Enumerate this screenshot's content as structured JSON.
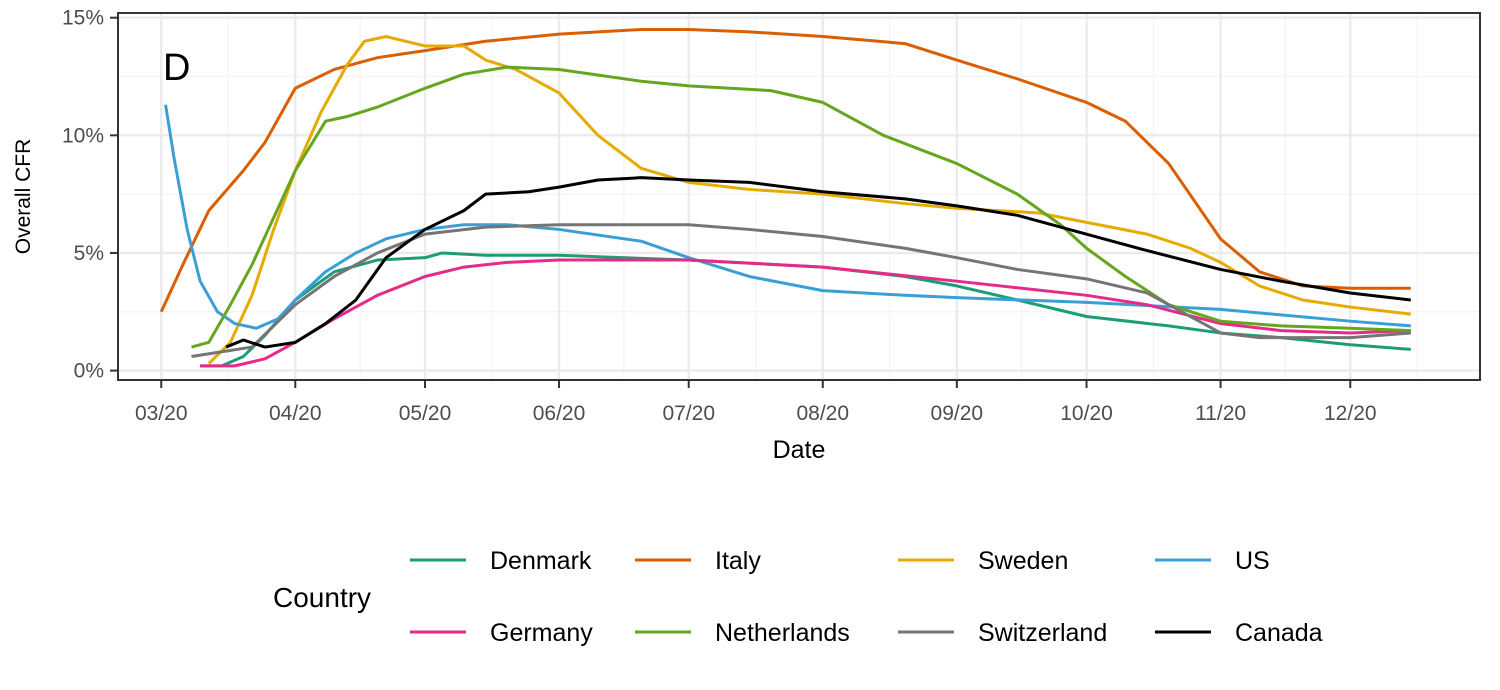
{
  "chart_data": {
    "type": "line",
    "panel_label": "D",
    "xlabel": "Date",
    "ylabel": "Overall CFR",
    "x_axis": {
      "type": "date",
      "range": [
        "2020-02-20",
        "2020-12-31"
      ],
      "ticks": [
        {
          "date": "2020-03-01",
          "label": "03/20"
        },
        {
          "date": "2020-04-01",
          "label": "04/20"
        },
        {
          "date": "2020-05-01",
          "label": "05/20"
        },
        {
          "date": "2020-06-01",
          "label": "06/20"
        },
        {
          "date": "2020-07-01",
          "label": "07/20"
        },
        {
          "date": "2020-08-01",
          "label": "08/20"
        },
        {
          "date": "2020-09-01",
          "label": "09/20"
        },
        {
          "date": "2020-10-01",
          "label": "10/20"
        },
        {
          "date": "2020-11-01",
          "label": "11/20"
        },
        {
          "date": "2020-12-01",
          "label": "12/20"
        }
      ]
    },
    "y_axis": {
      "range": [
        -0.4,
        15.2
      ],
      "ticks": [
        {
          "value": 0,
          "label": "0%"
        },
        {
          "value": 5,
          "label": "5%"
        },
        {
          "value": 10,
          "label": "10%"
        },
        {
          "value": 15,
          "label": "15%"
        }
      ]
    },
    "grid": true,
    "legend": {
      "title": "Country",
      "position": "bottom"
    },
    "series": [
      {
        "name": "Denmark",
        "color": "#1b9e77",
        "points": [
          [
            "2020-03-10",
            0.2
          ],
          [
            "2020-03-15",
            0.2
          ],
          [
            "2020-03-20",
            0.6
          ],
          [
            "2020-03-25",
            1.5
          ],
          [
            "2020-04-01",
            3.0
          ],
          [
            "2020-04-10",
            4.2
          ],
          [
            "2020-04-20",
            4.7
          ],
          [
            "2020-05-01",
            4.8
          ],
          [
            "2020-05-05",
            5.0
          ],
          [
            "2020-05-15",
            4.9
          ],
          [
            "2020-06-01",
            4.9
          ],
          [
            "2020-07-01",
            4.7
          ],
          [
            "2020-08-01",
            4.4
          ],
          [
            "2020-08-20",
            4.0
          ],
          [
            "2020-09-01",
            3.6
          ],
          [
            "2020-09-15",
            3.0
          ],
          [
            "2020-10-01",
            2.3
          ],
          [
            "2020-10-20",
            1.9
          ],
          [
            "2020-11-01",
            1.6
          ],
          [
            "2020-11-15",
            1.4
          ],
          [
            "2020-12-01",
            1.1
          ],
          [
            "2020-12-15",
            0.9
          ]
        ]
      },
      {
        "name": "Italy",
        "color": "#d95f02",
        "points": [
          [
            "2020-03-01",
            2.5
          ],
          [
            "2020-03-06",
            4.5
          ],
          [
            "2020-03-12",
            6.8
          ],
          [
            "2020-03-20",
            8.5
          ],
          [
            "2020-03-25",
            9.7
          ],
          [
            "2020-04-01",
            12.0
          ],
          [
            "2020-04-10",
            12.8
          ],
          [
            "2020-04-20",
            13.3
          ],
          [
            "2020-05-01",
            13.6
          ],
          [
            "2020-05-15",
            14.0
          ],
          [
            "2020-06-01",
            14.3
          ],
          [
            "2020-06-20",
            14.5
          ],
          [
            "2020-07-01",
            14.5
          ],
          [
            "2020-07-15",
            14.4
          ],
          [
            "2020-08-01",
            14.2
          ],
          [
            "2020-08-20",
            13.9
          ],
          [
            "2020-09-01",
            13.2
          ],
          [
            "2020-09-15",
            12.4
          ],
          [
            "2020-10-01",
            11.4
          ],
          [
            "2020-10-10",
            10.6
          ],
          [
            "2020-10-20",
            8.8
          ],
          [
            "2020-11-01",
            5.6
          ],
          [
            "2020-11-10",
            4.2
          ],
          [
            "2020-11-20",
            3.6
          ],
          [
            "2020-12-01",
            3.5
          ],
          [
            "2020-12-15",
            3.5
          ]
        ]
      },
      {
        "name": "Sweden",
        "color": "#e6ab02",
        "points": [
          [
            "2020-03-12",
            0.3
          ],
          [
            "2020-03-17",
            1.2
          ],
          [
            "2020-03-22",
            3.2
          ],
          [
            "2020-03-27",
            6.0
          ],
          [
            "2020-04-01",
            8.5
          ],
          [
            "2020-04-07",
            11.0
          ],
          [
            "2020-04-13",
            13.0
          ],
          [
            "2020-04-17",
            14.0
          ],
          [
            "2020-04-22",
            14.2
          ],
          [
            "2020-05-01",
            13.8
          ],
          [
            "2020-05-10",
            13.8
          ],
          [
            "2020-05-15",
            13.2
          ],
          [
            "2020-05-22",
            12.8
          ],
          [
            "2020-06-01",
            11.8
          ],
          [
            "2020-06-10",
            10.0
          ],
          [
            "2020-06-20",
            8.6
          ],
          [
            "2020-07-01",
            8.0
          ],
          [
            "2020-07-15",
            7.7
          ],
          [
            "2020-08-01",
            7.5
          ],
          [
            "2020-08-20",
            7.1
          ],
          [
            "2020-09-01",
            6.9
          ],
          [
            "2020-09-20",
            6.7
          ],
          [
            "2020-10-01",
            6.3
          ],
          [
            "2020-10-15",
            5.8
          ],
          [
            "2020-10-25",
            5.2
          ],
          [
            "2020-11-01",
            4.6
          ],
          [
            "2020-11-10",
            3.6
          ],
          [
            "2020-11-20",
            3.0
          ],
          [
            "2020-12-01",
            2.7
          ],
          [
            "2020-12-15",
            2.4
          ]
        ]
      },
      {
        "name": "US",
        "color": "#3a9fd6",
        "points": [
          [
            "2020-03-02",
            11.3
          ],
          [
            "2020-03-04",
            9.0
          ],
          [
            "2020-03-07",
            6.0
          ],
          [
            "2020-03-10",
            3.8
          ],
          [
            "2020-03-14",
            2.5
          ],
          [
            "2020-03-18",
            2.0
          ],
          [
            "2020-03-23",
            1.8
          ],
          [
            "2020-03-28",
            2.2
          ],
          [
            "2020-04-01",
            3.0
          ],
          [
            "2020-04-08",
            4.2
          ],
          [
            "2020-04-15",
            5.0
          ],
          [
            "2020-04-22",
            5.6
          ],
          [
            "2020-05-01",
            6.0
          ],
          [
            "2020-05-10",
            6.2
          ],
          [
            "2020-05-20",
            6.2
          ],
          [
            "2020-06-01",
            6.0
          ],
          [
            "2020-06-20",
            5.5
          ],
          [
            "2020-07-01",
            4.8
          ],
          [
            "2020-07-15",
            4.0
          ],
          [
            "2020-08-01",
            3.4
          ],
          [
            "2020-08-20",
            3.2
          ],
          [
            "2020-09-01",
            3.1
          ],
          [
            "2020-10-01",
            2.9
          ],
          [
            "2020-11-01",
            2.6
          ],
          [
            "2020-12-01",
            2.1
          ],
          [
            "2020-12-15",
            1.9
          ]
        ]
      },
      {
        "name": "Germany",
        "color": "#e7298a",
        "points": [
          [
            "2020-03-10",
            0.2
          ],
          [
            "2020-03-18",
            0.2
          ],
          [
            "2020-03-25",
            0.5
          ],
          [
            "2020-04-01",
            1.2
          ],
          [
            "2020-04-10",
            2.2
          ],
          [
            "2020-04-20",
            3.2
          ],
          [
            "2020-05-01",
            4.0
          ],
          [
            "2020-05-10",
            4.4
          ],
          [
            "2020-05-20",
            4.6
          ],
          [
            "2020-06-01",
            4.7
          ],
          [
            "2020-07-01",
            4.7
          ],
          [
            "2020-08-01",
            4.4
          ],
          [
            "2020-09-01",
            3.8
          ],
          [
            "2020-10-01",
            3.2
          ],
          [
            "2020-10-15",
            2.8
          ],
          [
            "2020-11-01",
            2.0
          ],
          [
            "2020-11-15",
            1.7
          ],
          [
            "2020-12-01",
            1.6
          ],
          [
            "2020-12-15",
            1.7
          ]
        ]
      },
      {
        "name": "Netherlands",
        "color": "#66a61e",
        "points": [
          [
            "2020-03-08",
            1.0
          ],
          [
            "2020-03-12",
            1.2
          ],
          [
            "2020-03-17",
            2.8
          ],
          [
            "2020-03-22",
            4.5
          ],
          [
            "2020-04-01",
            8.5
          ],
          [
            "2020-04-08",
            10.6
          ],
          [
            "2020-04-13",
            10.8
          ],
          [
            "2020-04-20",
            11.2
          ],
          [
            "2020-05-01",
            12.0
          ],
          [
            "2020-05-10",
            12.6
          ],
          [
            "2020-05-20",
            12.9
          ],
          [
            "2020-06-01",
            12.8
          ],
          [
            "2020-06-20",
            12.3
          ],
          [
            "2020-07-01",
            12.1
          ],
          [
            "2020-07-20",
            11.9
          ],
          [
            "2020-08-01",
            11.4
          ],
          [
            "2020-08-15",
            10.0
          ],
          [
            "2020-09-01",
            8.8
          ],
          [
            "2020-09-15",
            7.5
          ],
          [
            "2020-09-25",
            6.2
          ],
          [
            "2020-10-01",
            5.2
          ],
          [
            "2020-10-10",
            4.0
          ],
          [
            "2020-10-20",
            2.8
          ],
          [
            "2020-11-01",
            2.1
          ],
          [
            "2020-11-15",
            1.9
          ],
          [
            "2020-12-01",
            1.8
          ],
          [
            "2020-12-15",
            1.7
          ]
        ]
      },
      {
        "name": "Switzerland",
        "color": "#757575",
        "points": [
          [
            "2020-03-08",
            0.6
          ],
          [
            "2020-03-15",
            0.8
          ],
          [
            "2020-03-22",
            1.0
          ],
          [
            "2020-04-01",
            2.8
          ],
          [
            "2020-04-10",
            4.0
          ],
          [
            "2020-04-20",
            5.0
          ],
          [
            "2020-05-01",
            5.8
          ],
          [
            "2020-05-15",
            6.1
          ],
          [
            "2020-06-01",
            6.2
          ],
          [
            "2020-07-01",
            6.2
          ],
          [
            "2020-07-15",
            6.0
          ],
          [
            "2020-08-01",
            5.7
          ],
          [
            "2020-08-20",
            5.2
          ],
          [
            "2020-09-01",
            4.8
          ],
          [
            "2020-09-15",
            4.3
          ],
          [
            "2020-10-01",
            3.9
          ],
          [
            "2020-10-15",
            3.3
          ],
          [
            "2020-10-25",
            2.3
          ],
          [
            "2020-11-01",
            1.6
          ],
          [
            "2020-11-10",
            1.4
          ],
          [
            "2020-12-01",
            1.4
          ],
          [
            "2020-12-15",
            1.6
          ]
        ]
      },
      {
        "name": "Canada",
        "color": "#000000",
        "points": [
          [
            "2020-03-16",
            1.0
          ],
          [
            "2020-03-20",
            1.3
          ],
          [
            "2020-03-25",
            1.0
          ],
          [
            "2020-04-01",
            1.2
          ],
          [
            "2020-04-08",
            2.0
          ],
          [
            "2020-04-15",
            3.0
          ],
          [
            "2020-04-22",
            4.8
          ],
          [
            "2020-05-01",
            6.0
          ],
          [
            "2020-05-10",
            6.8
          ],
          [
            "2020-05-15",
            7.5
          ],
          [
            "2020-05-25",
            7.6
          ],
          [
            "2020-06-01",
            7.8
          ],
          [
            "2020-06-10",
            8.1
          ],
          [
            "2020-06-20",
            8.2
          ],
          [
            "2020-07-01",
            8.1
          ],
          [
            "2020-07-15",
            8.0
          ],
          [
            "2020-08-01",
            7.6
          ],
          [
            "2020-08-20",
            7.3
          ],
          [
            "2020-09-01",
            7.0
          ],
          [
            "2020-09-15",
            6.6
          ],
          [
            "2020-10-01",
            5.8
          ],
          [
            "2020-10-15",
            5.1
          ],
          [
            "2020-11-01",
            4.3
          ],
          [
            "2020-11-15",
            3.8
          ],
          [
            "2020-12-01",
            3.3
          ],
          [
            "2020-12-15",
            3.0
          ]
        ]
      }
    ]
  }
}
